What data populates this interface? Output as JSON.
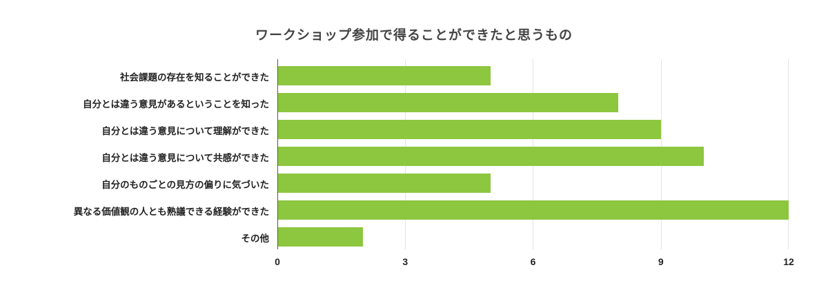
{
  "chart_data": {
    "type": "bar",
    "orientation": "horizontal",
    "title": "ワークショップ参加で得ることができたと思うもの",
    "categories": [
      "社会課題の存在を知ることができた",
      "自分とは違う意見があるということを知った",
      "自分とは違う意見について理解ができた",
      "自分とは違う意見について共感ができた",
      "自分のものごとの見方の偏りに気づいた",
      "異なる価値観の人とも熟議できる経験ができた",
      "その他"
    ],
    "values": [
      5,
      8,
      9,
      10,
      5,
      12,
      2
    ],
    "xlabel": "",
    "ylabel": "",
    "xlim": [
      0,
      12
    ],
    "xticks": [
      "0",
      "3",
      "6",
      "9",
      "12"
    ],
    "grid": true,
    "legend": null,
    "bar_color": "#8dc63f"
  }
}
